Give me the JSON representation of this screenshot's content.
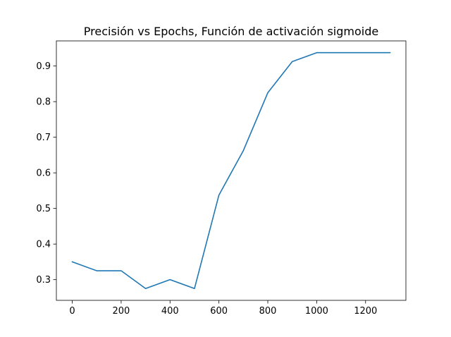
{
  "chart_data": {
    "type": "line",
    "title": "Precisión vs Epochs, Función de activación sigmoide",
    "xlabel": "",
    "ylabel": "",
    "x": [
      0,
      100,
      200,
      300,
      400,
      500,
      600,
      700,
      800,
      900,
      1000,
      1100,
      1200,
      1300
    ],
    "series": [
      {
        "values": [
          0.35,
          0.325,
          0.325,
          0.275,
          0.3,
          0.275,
          0.5375,
          0.6625,
          0.825,
          0.9125,
          0.9375,
          0.9375,
          0.9375,
          0.9375
        ],
        "color": "#1f77b4"
      }
    ],
    "xlim": [
      -65,
      1365
    ],
    "ylim": [
      0.2419,
      0.9706
    ],
    "xticks": [
      0,
      200,
      400,
      600,
      800,
      1000,
      1200
    ],
    "yticks": [
      0.3,
      0.4,
      0.5,
      0.6,
      0.7,
      0.8,
      0.9
    ],
    "grid": false,
    "legend": "none"
  }
}
